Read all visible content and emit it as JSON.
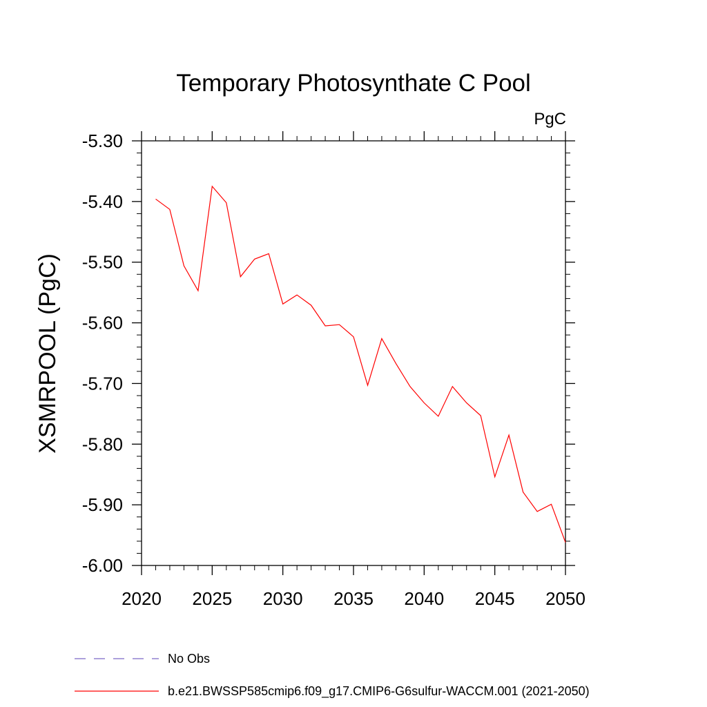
{
  "chart_data": {
    "type": "line",
    "title": "Temporary Photosynthate C Pool",
    "units": "PgC",
    "xlabel": "",
    "ylabel": "XSMRPOOL  (PgC)",
    "xlim": [
      2020,
      2050
    ],
    "ylim": [
      -6.0,
      -5.3
    ],
    "x_ticks": [
      2020,
      2025,
      2030,
      2035,
      2040,
      2045,
      2050
    ],
    "x_tick_labels": [
      "2020",
      "2025",
      "2030",
      "2035",
      "2040",
      "2045",
      "2050"
    ],
    "y_ticks": [
      -5.3,
      -5.4,
      -5.5,
      -5.6,
      -5.7,
      -5.8,
      -5.9,
      -6.0
    ],
    "y_tick_labels": [
      "-5.30",
      "-5.40",
      "-5.50",
      "-5.60",
      "-5.70",
      "-5.80",
      "-5.90",
      "-6.00"
    ],
    "grid": false,
    "legend_position": "bottom",
    "series": [
      {
        "name": "b.e21.BWSSP585cmip6.f09_g17.CMIP6-G6sulfur-WACCM.001 (2021-2050)",
        "color": "#ff0000",
        "style": "solid",
        "x": [
          2021,
          2022,
          2023,
          2024,
          2025,
          2026,
          2027,
          2028,
          2029,
          2030,
          2031,
          2032,
          2033,
          2034,
          2035,
          2036,
          2037,
          2038,
          2039,
          2040,
          2041,
          2042,
          2043,
          2044,
          2045,
          2046,
          2047,
          2048,
          2049,
          2050
        ],
        "values": [
          -5.396,
          -5.413,
          -5.506,
          -5.547,
          -5.375,
          -5.402,
          -5.524,
          -5.495,
          -5.486,
          -5.569,
          -5.554,
          -5.571,
          -5.605,
          -5.603,
          -5.623,
          -5.703,
          -5.626,
          -5.667,
          -5.705,
          -5.732,
          -5.754,
          -5.705,
          -5.732,
          -5.753,
          -5.854,
          -5.785,
          -5.879,
          -5.911,
          -5.899,
          -5.962
        ]
      }
    ],
    "legend": [
      {
        "label": "No Obs",
        "color": "#7b68c8",
        "style": "dashed"
      },
      {
        "label": "b.e21.BWSSP585cmip6.f09_g17.CMIP6-G6sulfur-WACCM.001 (2021-2050)",
        "color": "#ff0000",
        "style": "solid"
      }
    ]
  }
}
